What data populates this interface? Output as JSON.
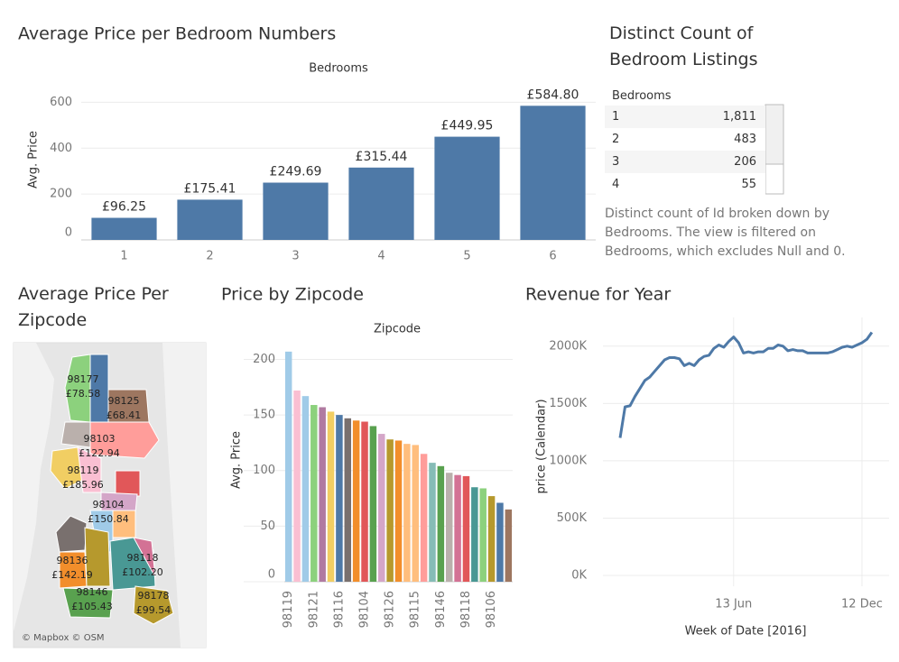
{
  "chart_data": [
    {
      "type": "bar",
      "title": "Average Price per Bedroom Numbers",
      "x_label": "Bedrooms",
      "y_label": "Avg. Price",
      "categories": [
        "1",
        "2",
        "3",
        "4",
        "5",
        "6"
      ],
      "values": [
        96.25,
        175.41,
        249.69,
        315.44,
        449.95,
        584.8
      ],
      "value_labels": [
        "£96.25",
        "£175.41",
        "£249.69",
        "£315.44",
        "£449.95",
        "£584.80"
      ],
      "color": "#4e79a7",
      "ylim": [
        0,
        700
      ],
      "yticks": [
        0,
        200,
        400,
        600
      ],
      "grid": true
    },
    {
      "type": "bar",
      "title": "Price by Zipcode",
      "x_label": "Zipcode",
      "y_label": "Avg. Price",
      "categories": [
        "98119",
        null,
        null,
        "98121",
        null,
        null,
        "98116",
        null,
        null,
        "98104",
        null,
        null,
        "98126",
        null,
        null,
        "98115",
        null,
        null,
        "98146",
        null,
        null,
        "98118",
        null,
        null,
        "98106",
        null,
        null
      ],
      "values": [
        207,
        172,
        167,
        159,
        157,
        153,
        150,
        147,
        145,
        144,
        140,
        133,
        128,
        127,
        124,
        123,
        115,
        107,
        104,
        98,
        96,
        95,
        85,
        84,
        77,
        71,
        65
      ],
      "colors": [
        "#a0cbe8",
        "#fabfd2",
        "#a0cbe8",
        "#8cd17d",
        "#b07aa1",
        "#f1ce63",
        "#4e79a7",
        "#79706e",
        "#f28e2b",
        "#e15759",
        "#59a14f",
        "#d4a6c8",
        "#b6992d",
        "#f28e2b",
        "#ffbe7d",
        "#ffbe7d",
        "#ff9d9a",
        "#86bcb6",
        "#59a14f",
        "#bab0ac",
        "#d37295",
        "#e15759",
        "#499894",
        "#8cd17d",
        "#b6992d",
        "#4e79a7",
        "#9d7660"
      ],
      "ylim": [
        0,
        215
      ],
      "yticks": [
        0,
        50,
        100,
        150,
        200
      ],
      "grid": true
    },
    {
      "type": "line",
      "title": "Revenue for Year",
      "x_label": "Week of Date [2016]",
      "y_label": "price (Calendar)",
      "x": [
        "2016-01-04",
        "2016-01-11",
        "2016-01-18",
        "2016-01-25",
        "2016-02-01",
        "2016-02-08",
        "2016-02-15",
        "2016-02-22",
        "2016-02-29",
        "2016-03-07",
        "2016-03-14",
        "2016-03-21",
        "2016-03-28",
        "2016-04-04",
        "2016-04-11",
        "2016-04-18",
        "2016-04-25",
        "2016-05-02",
        "2016-05-09",
        "2016-05-16",
        "2016-05-23",
        "2016-05-30",
        "2016-06-06",
        "2016-06-13",
        "2016-06-20",
        "2016-06-27",
        "2016-07-04",
        "2016-07-11",
        "2016-07-18",
        "2016-07-25",
        "2016-08-01",
        "2016-08-08",
        "2016-08-15",
        "2016-08-22",
        "2016-08-29",
        "2016-09-05",
        "2016-09-12",
        "2016-09-19",
        "2016-09-26",
        "2016-10-03",
        "2016-10-10",
        "2016-10-17",
        "2016-10-24",
        "2016-10-31",
        "2016-11-07",
        "2016-11-14",
        "2016-11-21",
        "2016-11-28",
        "2016-12-05",
        "2016-12-12",
        "2016-12-19",
        "2016-12-26"
      ],
      "values": [
        1200000,
        1470000,
        1480000,
        1560000,
        1630000,
        1700000,
        1730000,
        1780000,
        1830000,
        1880000,
        1900000,
        1900000,
        1890000,
        1830000,
        1850000,
        1830000,
        1880000,
        1910000,
        1920000,
        1980000,
        2010000,
        1990000,
        2040000,
        2080000,
        2030000,
        1940000,
        1950000,
        1940000,
        1950000,
        1950000,
        1980000,
        1980000,
        2010000,
        2000000,
        1960000,
        1970000,
        1960000,
        1960000,
        1940000,
        1940000,
        1940000,
        1940000,
        1940000,
        1950000,
        1970000,
        1990000,
        2000000,
        1990000,
        2010000,
        2030000,
        2060000,
        2120000
      ],
      "color": "#4e79a7",
      "xlim": [
        "2016-01-01",
        "2016-12-31"
      ],
      "xticks": [
        {
          "value": "2016-06-13",
          "label": "13 Jun"
        },
        {
          "value": "2016-12-12",
          "label": "12 Dec"
        }
      ],
      "ylim": [
        0,
        2250000
      ],
      "yticks": [
        {
          "value": 0,
          "label": "0K"
        },
        {
          "value": 500000,
          "label": "500K"
        },
        {
          "value": 1000000,
          "label": "1000K"
        },
        {
          "value": 1500000,
          "label": "1500K"
        },
        {
          "value": 2000000,
          "label": "2000K"
        }
      ],
      "grid": true
    }
  ],
  "table": {
    "title": "Distinct Count of Bedroom Listings",
    "header": "Bedrooms",
    "rows": [
      [
        "1",
        "1,811"
      ],
      [
        "2",
        "483"
      ],
      [
        "3",
        "206"
      ],
      [
        "4",
        "55"
      ]
    ],
    "caption": "Distinct count of Id broken down by Bedrooms. The view is filtered on Bedrooms, which excludes Null and 0."
  },
  "map": {
    "title": "Average Price Per Zipcode",
    "regions": [
      {
        "zipcode": "98177",
        "price": "£78.58"
      },
      {
        "zipcode": "98125",
        "price": "£68.41"
      },
      {
        "zipcode": "98103",
        "price": "£122.94"
      },
      {
        "zipcode": "98119",
        "price": "£185.96"
      },
      {
        "zipcode": "98104",
        "price": "£150.84"
      },
      {
        "zipcode": "98136",
        "price": "£142.19"
      },
      {
        "zipcode": "98118",
        "price": "£102.20"
      },
      {
        "zipcode": "98146",
        "price": "£105.43"
      },
      {
        "zipcode": "98178",
        "price": "£99.54"
      }
    ],
    "attribution": "© Mapbox © OSM"
  }
}
